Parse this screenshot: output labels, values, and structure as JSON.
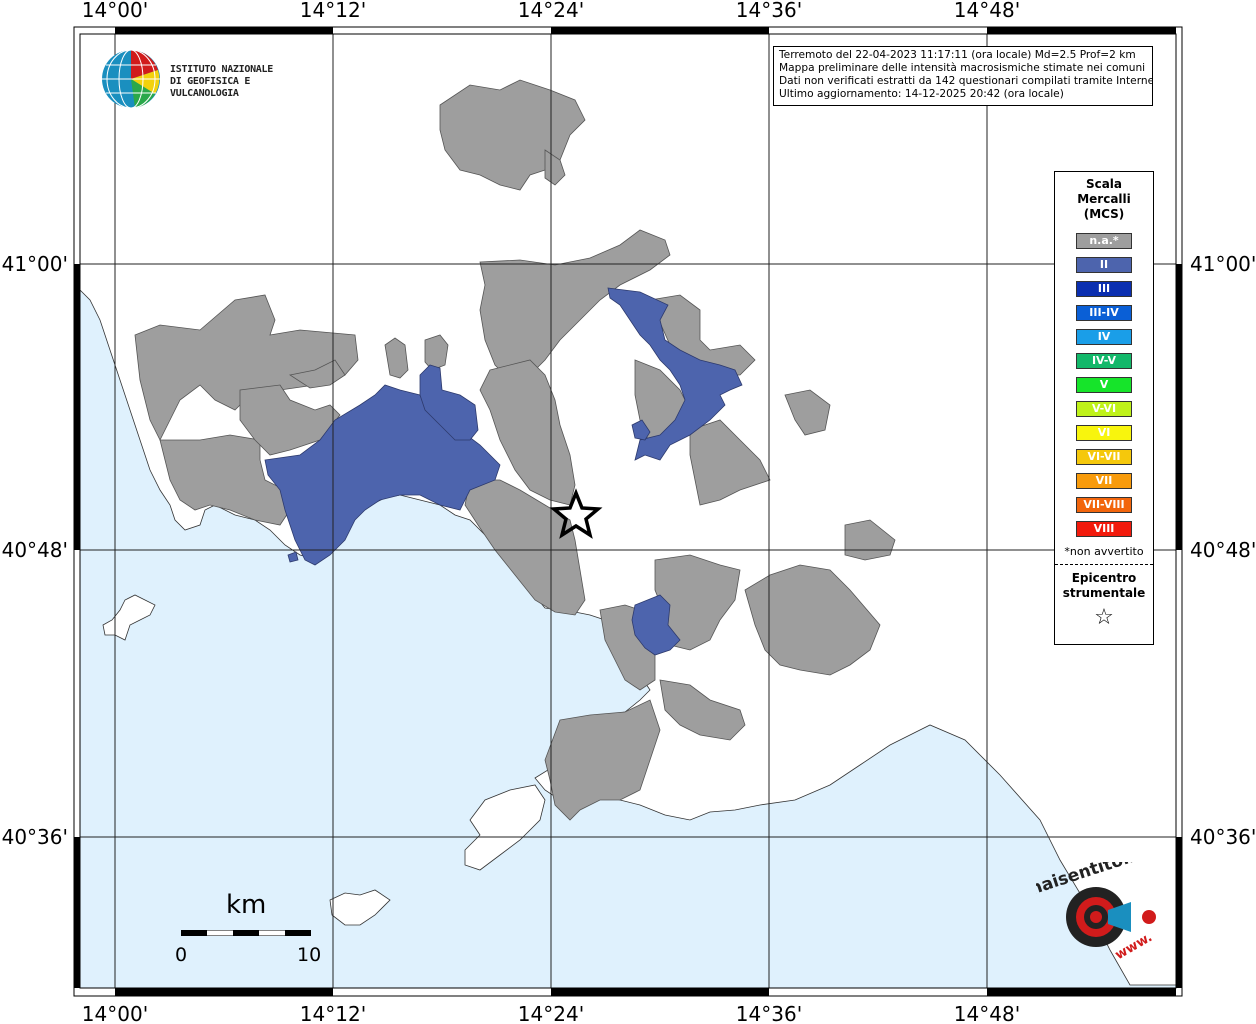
{
  "map": {
    "lon_labels": [
      "14°00'",
      "14°12'",
      "14°24'",
      "14°36'",
      "14°48'"
    ],
    "lat_labels": [
      "41°00'",
      "40°48'",
      "40°36'"
    ],
    "colors": {
      "sea": "#dff1fd",
      "land": "#ffffff",
      "na": "#9e9e9e",
      "intensity_II": "#4d64ad"
    },
    "epicenter_symbol": "star-icon"
  },
  "info": {
    "line1": "Terremoto del 22-04-2023 11:17:11 (ora locale) Md=2.5 Prof=2 km",
    "line2": "Mappa preliminare delle intensità macrosismiche stimate nei comuni",
    "line3": "Dati non verificati estratti da 142 questionari compilati tramite Internet.",
    "line4": "Ultimo aggiornamento: 14-12-2025 20:42 (ora locale)"
  },
  "logo": {
    "line1": "ISTITUTO NAZIONALE",
    "line2": "DI GEOFISICA E VULCANOLOGIA"
  },
  "legend": {
    "title1": "Scala",
    "title2": "Mercalli",
    "title3": "(MCS)",
    "levels": [
      {
        "label": "n.a.*",
        "color": "#9e9e9e"
      },
      {
        "label": "II",
        "color": "#4d64ad"
      },
      {
        "label": "III",
        "color": "#0b2fb0"
      },
      {
        "label": "III-IV",
        "color": "#0a5fd6"
      },
      {
        "label": "IV",
        "color": "#1a9ee8"
      },
      {
        "label": "IV-V",
        "color": "#13b86a"
      },
      {
        "label": "V",
        "color": "#16e42a"
      },
      {
        "label": "V-VI",
        "color": "#bff21a"
      },
      {
        "label": "VI",
        "color": "#f8f50d"
      },
      {
        "label": "VI-VII",
        "color": "#f5c80c"
      },
      {
        "label": "VII",
        "color": "#f89b0b"
      },
      {
        "label": "VII-VIII",
        "color": "#f2650c"
      },
      {
        "label": "VIII",
        "color": "#f21a0c"
      }
    ],
    "note": "*non avvertito",
    "epicenter1": "Epicentro",
    "epicenter2": "strumentale",
    "star": "☆"
  },
  "scale": {
    "unit": "km",
    "min": "0",
    "max": "10"
  },
  "hst_logo": {
    "text": "haisentitoilterremoto.it",
    "www": "www."
  }
}
